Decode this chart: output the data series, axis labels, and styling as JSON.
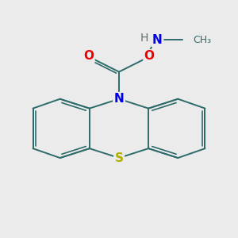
{
  "background_color": "#ebebeb",
  "bond_color": "#2d6b6b",
  "S_color": "#b0b000",
  "N_color": "#0000ee",
  "O_color": "#ee0000",
  "H_color": "#607070",
  "figsize": [
    3.0,
    3.0
  ],
  "dpi": 100,
  "xlim": [
    0,
    10
  ],
  "ylim": [
    0,
    10
  ]
}
